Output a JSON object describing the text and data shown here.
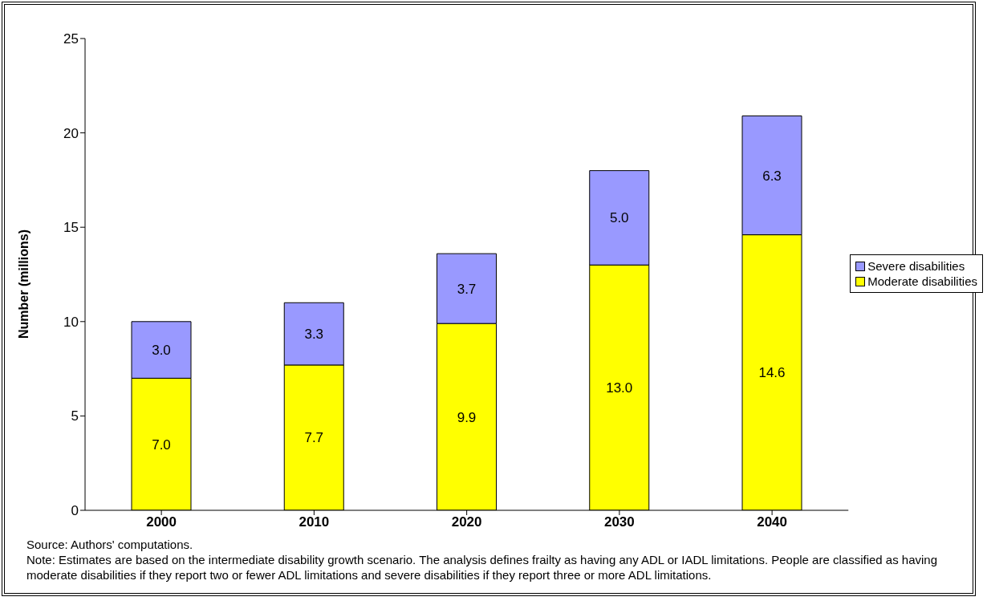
{
  "chart_data": {
    "type": "bar",
    "stacked": true,
    "ylabel": "Number (millions)",
    "categories": [
      "2000",
      "2010",
      "2020",
      "2030",
      "2040"
    ],
    "series": [
      {
        "name": "Moderate disabilities",
        "color": "#ffff00",
        "values": [
          7.0,
          7.7,
          9.9,
          13.0,
          14.6
        ],
        "value_labels": [
          "7.0",
          "7.7",
          "9.9",
          "13.0",
          "14.6"
        ]
      },
      {
        "name": "Severe disabilities",
        "color": "#9999ff",
        "values": [
          3.0,
          3.3,
          3.7,
          5.0,
          6.3
        ],
        "value_labels": [
          "3.0",
          "3.3",
          "3.7",
          "5.0",
          "6.3"
        ]
      }
    ],
    "ylim": [
      0,
      25
    ],
    "yticks": [
      0,
      5,
      10,
      15,
      20,
      25
    ],
    "grid": false,
    "legend": "right",
    "annotations": [
      "Source: Authors' computations.",
      "Note: Estimates are based on the intermediate disability growth scenario. The analysis defines frailty as having any ADL or IADL limitations. People are classified as having moderate disabilities if they report two or fewer ADL limitations and severe disabilities if they report three or more ADL limitations."
    ]
  }
}
